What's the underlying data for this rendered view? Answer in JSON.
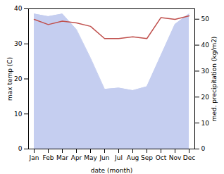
{
  "chart_data": {
    "type": "line",
    "x_label": "date (month)",
    "y_label": "max temp (C)",
    "y2_label": "med. precipitation (kg/m2)",
    "categories": [
      "Jan",
      "Feb",
      "Mar",
      "Apr",
      "May",
      "Jun",
      "Jul",
      "Aug",
      "Sep",
      "Oct",
      "Nov",
      "Dec"
    ],
    "series": [
      {
        "type": "area",
        "axis": "y2",
        "color": "#c5cef0",
        "values": [
          52.0,
          51.0,
          52.0,
          46.0,
          35.0,
          23.0,
          23.5,
          22.5,
          24.0,
          36.0,
          48.0,
          52.0
        ]
      },
      {
        "type": "line",
        "color": "#c0504d",
        "values": [
          37.0,
          35.5,
          36.5,
          36.0,
          35.0,
          31.5,
          31.5,
          32.0,
          31.5,
          37.5,
          37.0,
          38.0
        ]
      }
    ],
    "ylim": [
      0,
      40
    ],
    "yticks": [
      0,
      10,
      20,
      30,
      40
    ],
    "y2lim": [
      0,
      54
    ],
    "y2ticks": [
      0,
      10,
      20,
      30,
      40,
      50
    ],
    "grid": false
  }
}
